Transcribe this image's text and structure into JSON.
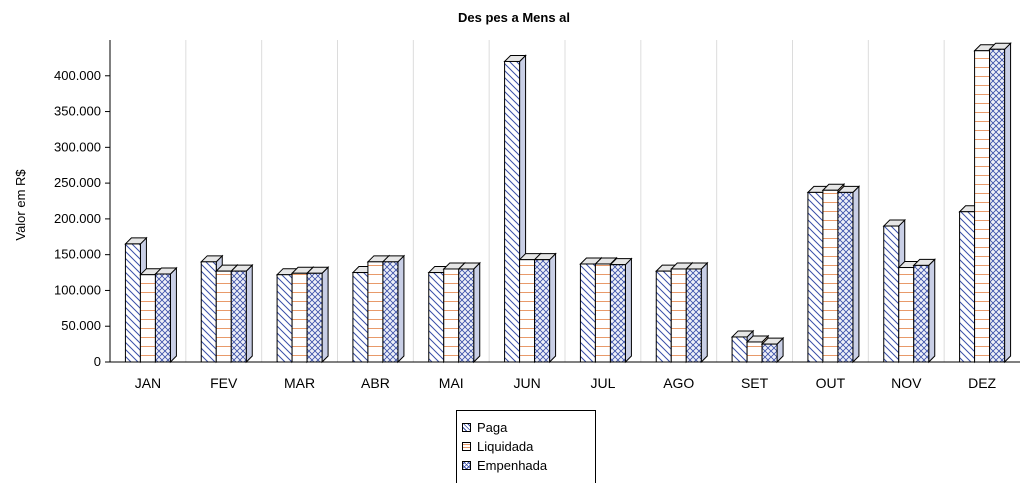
{
  "chart_data": {
    "type": "bar",
    "title": "Des pes a Mens al",
    "xlabel": "",
    "ylabel": "Valor em R$",
    "ylim": [
      0,
      450000
    ],
    "yticks": [
      "0",
      "50.000",
      "100.000",
      "150.000",
      "200.000",
      "250.000",
      "300.000",
      "350.000",
      "400.000"
    ],
    "grid": "vertical",
    "legend_position": "bottom",
    "categories": [
      "JAN",
      "FEV",
      "MAR",
      "ABR",
      "MAI",
      "JUN",
      "JUL",
      "AGO",
      "SET",
      "OUT",
      "NOV",
      "DEZ"
    ],
    "series": [
      {
        "name": "Paga",
        "color": "#3a4fa8",
        "pattern": "diagonal",
        "values": [
          165000,
          140000,
          122000,
          125000,
          125000,
          420000,
          137000,
          127000,
          35000,
          237000,
          190000,
          210000
        ]
      },
      {
        "name": "Liquidada",
        "color": "#e89a6a",
        "pattern": "horizontal",
        "values": [
          122000,
          127000,
          124000,
          140000,
          130000,
          143000,
          137000,
          130000,
          28000,
          240000,
          132000,
          435000
        ]
      },
      {
        "name": "Empenhada",
        "color": "#3a4fa8",
        "pattern": "crosshatch",
        "values": [
          123000,
          127000,
          124000,
          140000,
          130000,
          143000,
          136000,
          130000,
          25000,
          237000,
          135000,
          437000
        ]
      }
    ]
  }
}
